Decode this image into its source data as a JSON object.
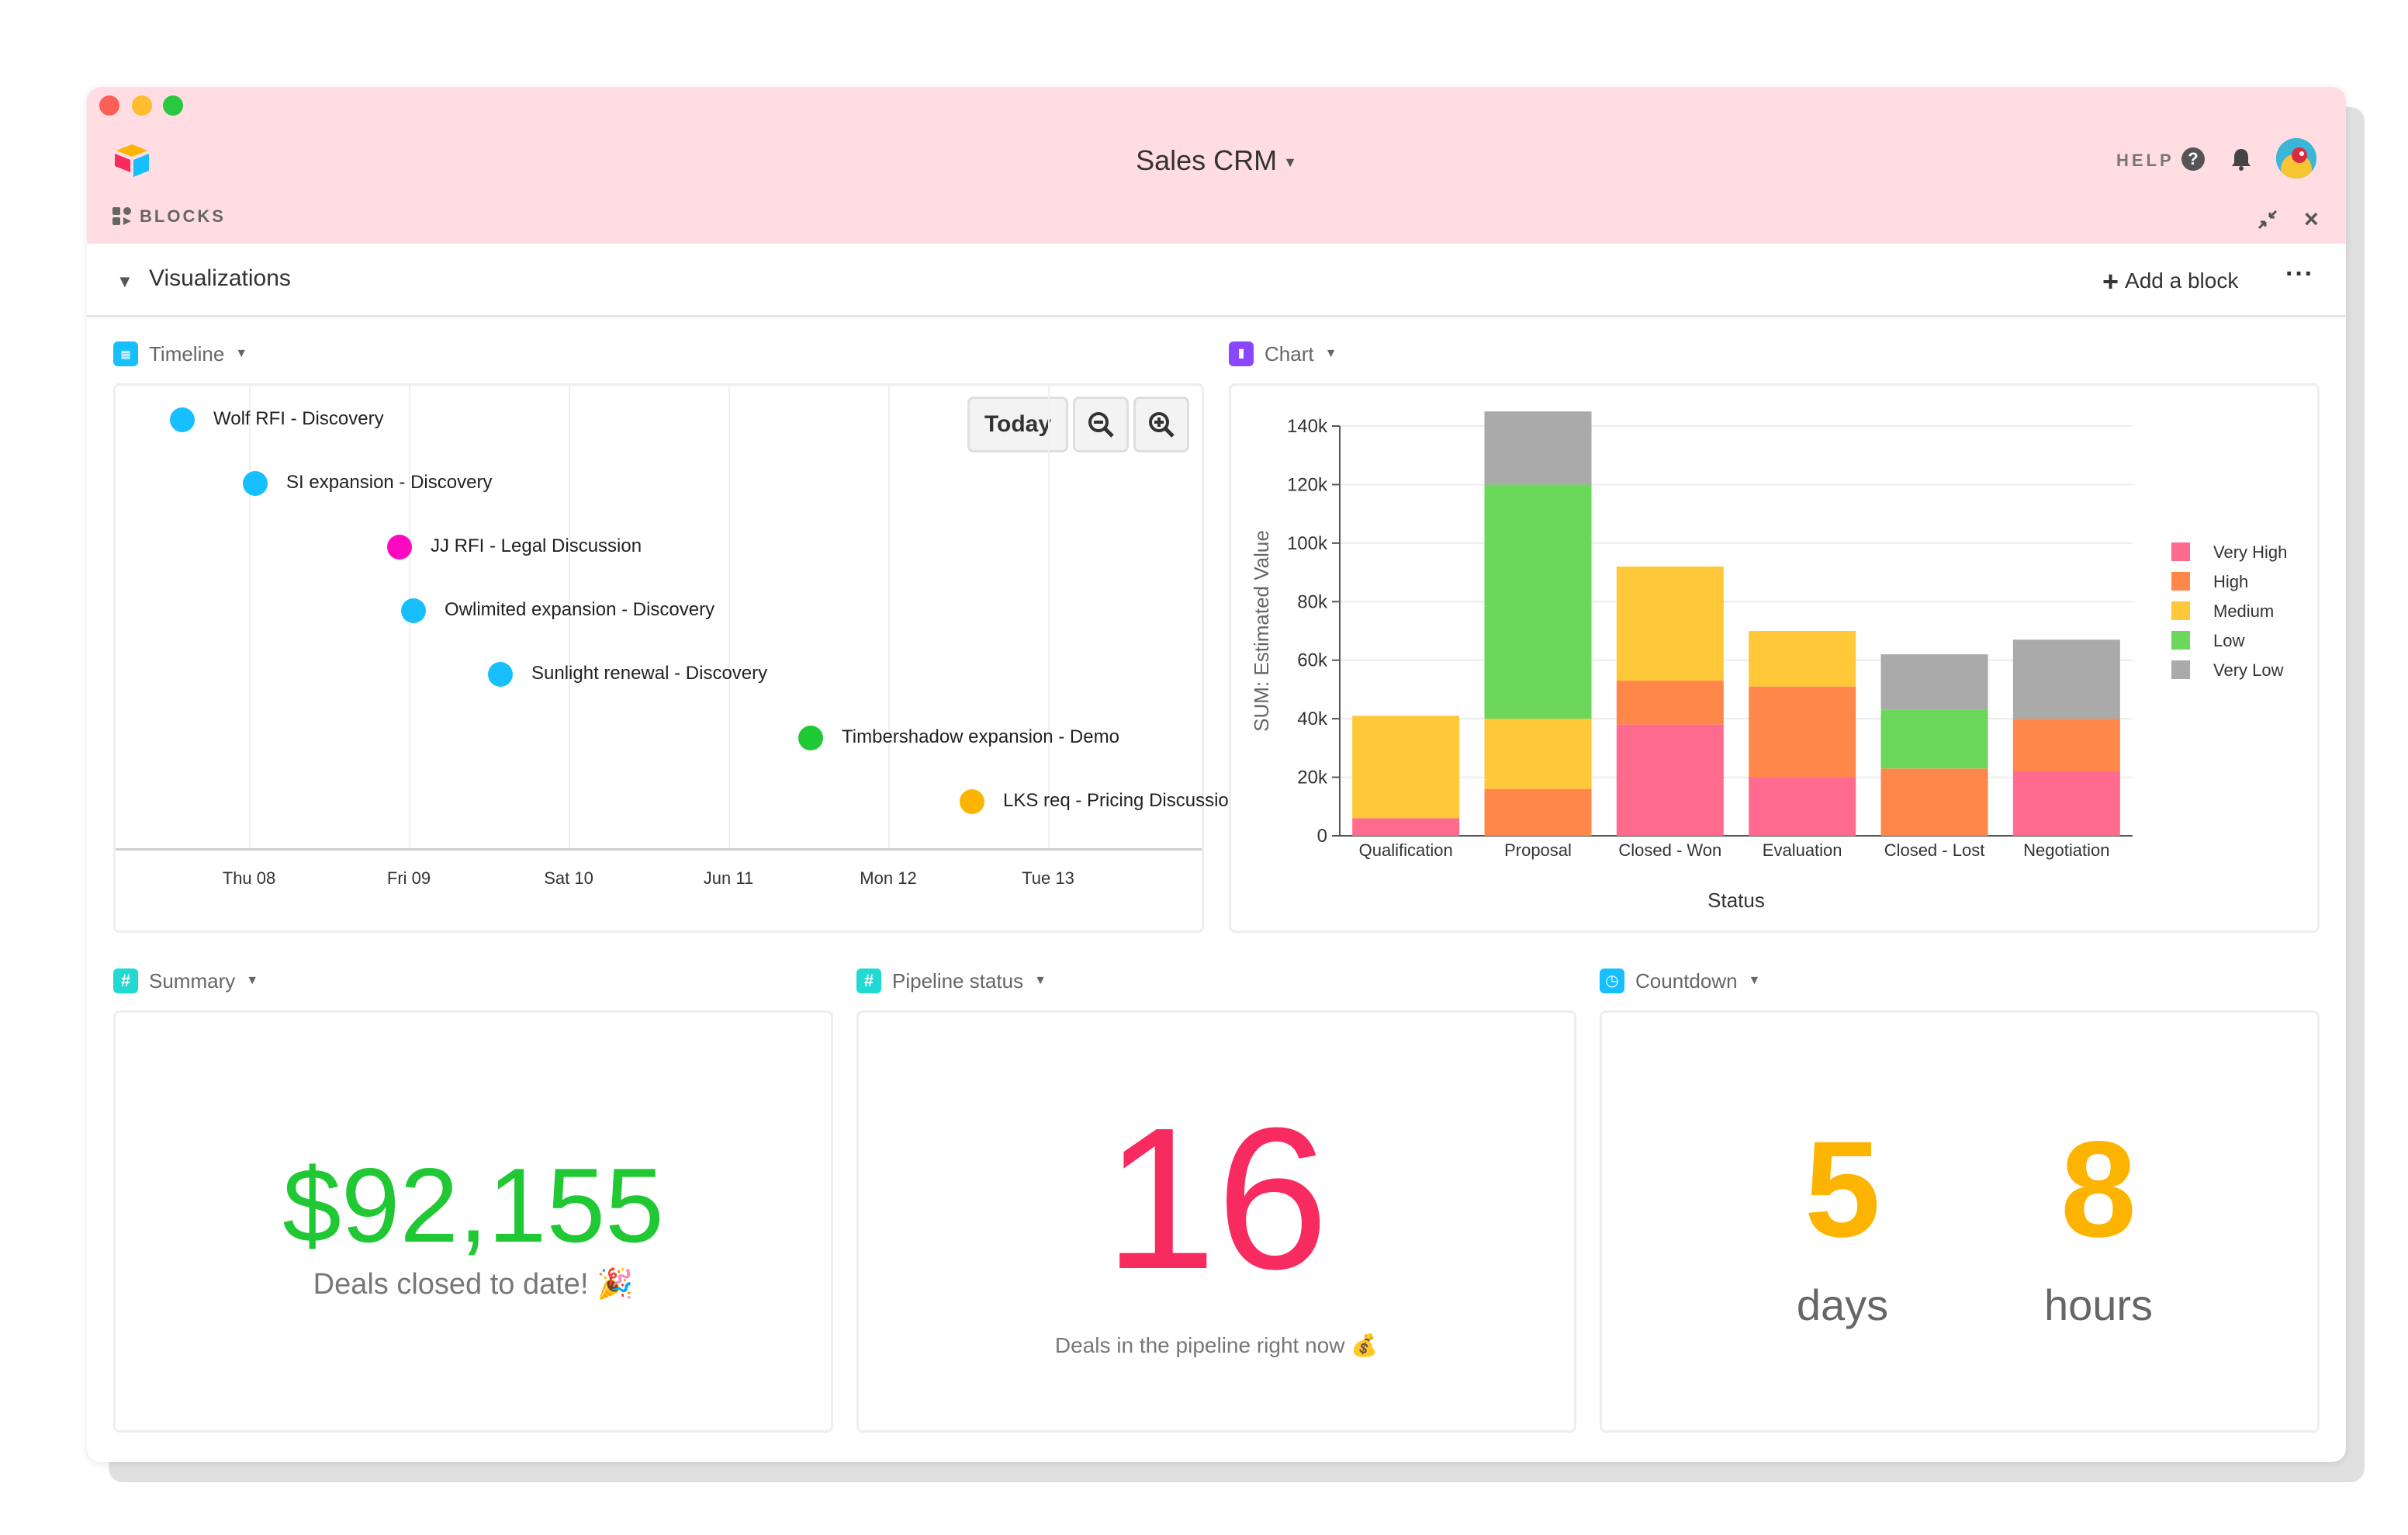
{
  "window": {
    "app_title": "Sales CRM",
    "help_label": "HELP",
    "blocks_label": "BLOCKS"
  },
  "toolbar": {
    "section_title": "Visualizations",
    "add_block_label": "Add a block"
  },
  "timeline": {
    "title": "Timeline",
    "today_label": "Today",
    "ticks": [
      "Thu 08",
      "Fri 09",
      "Sat 10",
      "Jun 11",
      "Mon 12",
      "Tue 13"
    ],
    "events": [
      {
        "label": "Wolf RFI - Discovery",
        "color": "#18bfff"
      },
      {
        "label": "SI expansion - Discovery",
        "color": "#18bfff"
      },
      {
        "label": "JJ RFI - Legal Discussion",
        "color": "#ff08c2"
      },
      {
        "label": "Owlimited expansion - Discovery",
        "color": "#18bfff"
      },
      {
        "label": "Sunlight renewal - Discovery",
        "color": "#18bfff"
      },
      {
        "label": "Timbershadow expansion - Demo",
        "color": "#20c933"
      },
      {
        "label": "LKS req - Pricing Discussion",
        "color": "#fcb400"
      }
    ]
  },
  "chart": {
    "title": "Chart",
    "colors": {
      "Very High": "#ff6b8e",
      "High": "#ff874a",
      "Medium": "#ffc838",
      "Low": "#6bd85b",
      "Very Low": "#aaaaaa"
    }
  },
  "chart_data": {
    "type": "bar",
    "stacked": true,
    "categories": [
      "Qualification",
      "Proposal",
      "Closed - Won",
      "Evaluation",
      "Closed - Lost",
      "Negotiation"
    ],
    "series": [
      {
        "name": "Very High",
        "values": [
          6000,
          0,
          38000,
          20000,
          0,
          22000
        ]
      },
      {
        "name": "High",
        "values": [
          0,
          16000,
          15000,
          31000,
          23000,
          18000
        ]
      },
      {
        "name": "Medium",
        "values": [
          35000,
          24000,
          39000,
          19000,
          0,
          0
        ]
      },
      {
        "name": "Low",
        "values": [
          0,
          80000,
          0,
          0,
          20000,
          0
        ]
      },
      {
        "name": "Very Low",
        "values": [
          0,
          25000,
          0,
          0,
          19000,
          27000
        ]
      }
    ],
    "ylabel": "SUM: Estimated Value",
    "xlabel": "Status",
    "ylim": [
      0,
      140000
    ],
    "yticks": [
      "0",
      "20k",
      "40k",
      "60k",
      "80k",
      "100k",
      "120k",
      "140k"
    ],
    "grid": true,
    "legend_position": "right"
  },
  "summary": {
    "title": "Summary",
    "value": "$92,155",
    "caption": "Deals closed to date! 🎉"
  },
  "pipeline": {
    "title": "Pipeline status",
    "value": "16",
    "caption": "Deals in the pipeline right now 💰"
  },
  "countdown": {
    "title": "Countdown",
    "days_value": "5",
    "days_label": "days",
    "hours_value": "8",
    "hours_label": "hours"
  }
}
